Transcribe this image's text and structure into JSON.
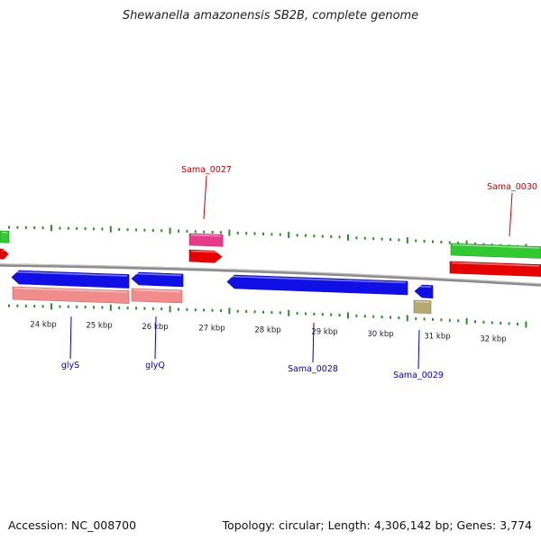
{
  "title": "Shewanella amazonensis SB2B, complete genome",
  "footer": {
    "accession": "Accession: NC_008700",
    "summary": "Topology: circular; Length: 4,306,142 bp; Genes: 3,774"
  },
  "colors": {
    "backbone": "#8c8c8c",
    "ticks": "#2e8b2e",
    "tick_label": "#222222",
    "forward_label": "#cc0000",
    "reverse_label": "#0000cc",
    "blue_gene": "#1010e6",
    "pink_gene": "#f08c8c",
    "red_gene": "#e60000",
    "magenta_gene": "#e63c8c",
    "green_gene": "#32c832",
    "khaki_gene": "#b4aa6e"
  },
  "ruler": {
    "tick_labels": [
      "24 kbp",
      "25 kbp",
      "26 kbp",
      "27 kbp",
      "28 kbp",
      "29 kbp",
      "30 kbp",
      "31 kbp",
      "32 kbp"
    ]
  },
  "gene_labels": {
    "forward": [
      "Sama_0027",
      "Sama_0030"
    ],
    "reverse": [
      "glyS",
      "glyQ",
      "Sama_0028",
      "Sama_0029"
    ]
  }
}
